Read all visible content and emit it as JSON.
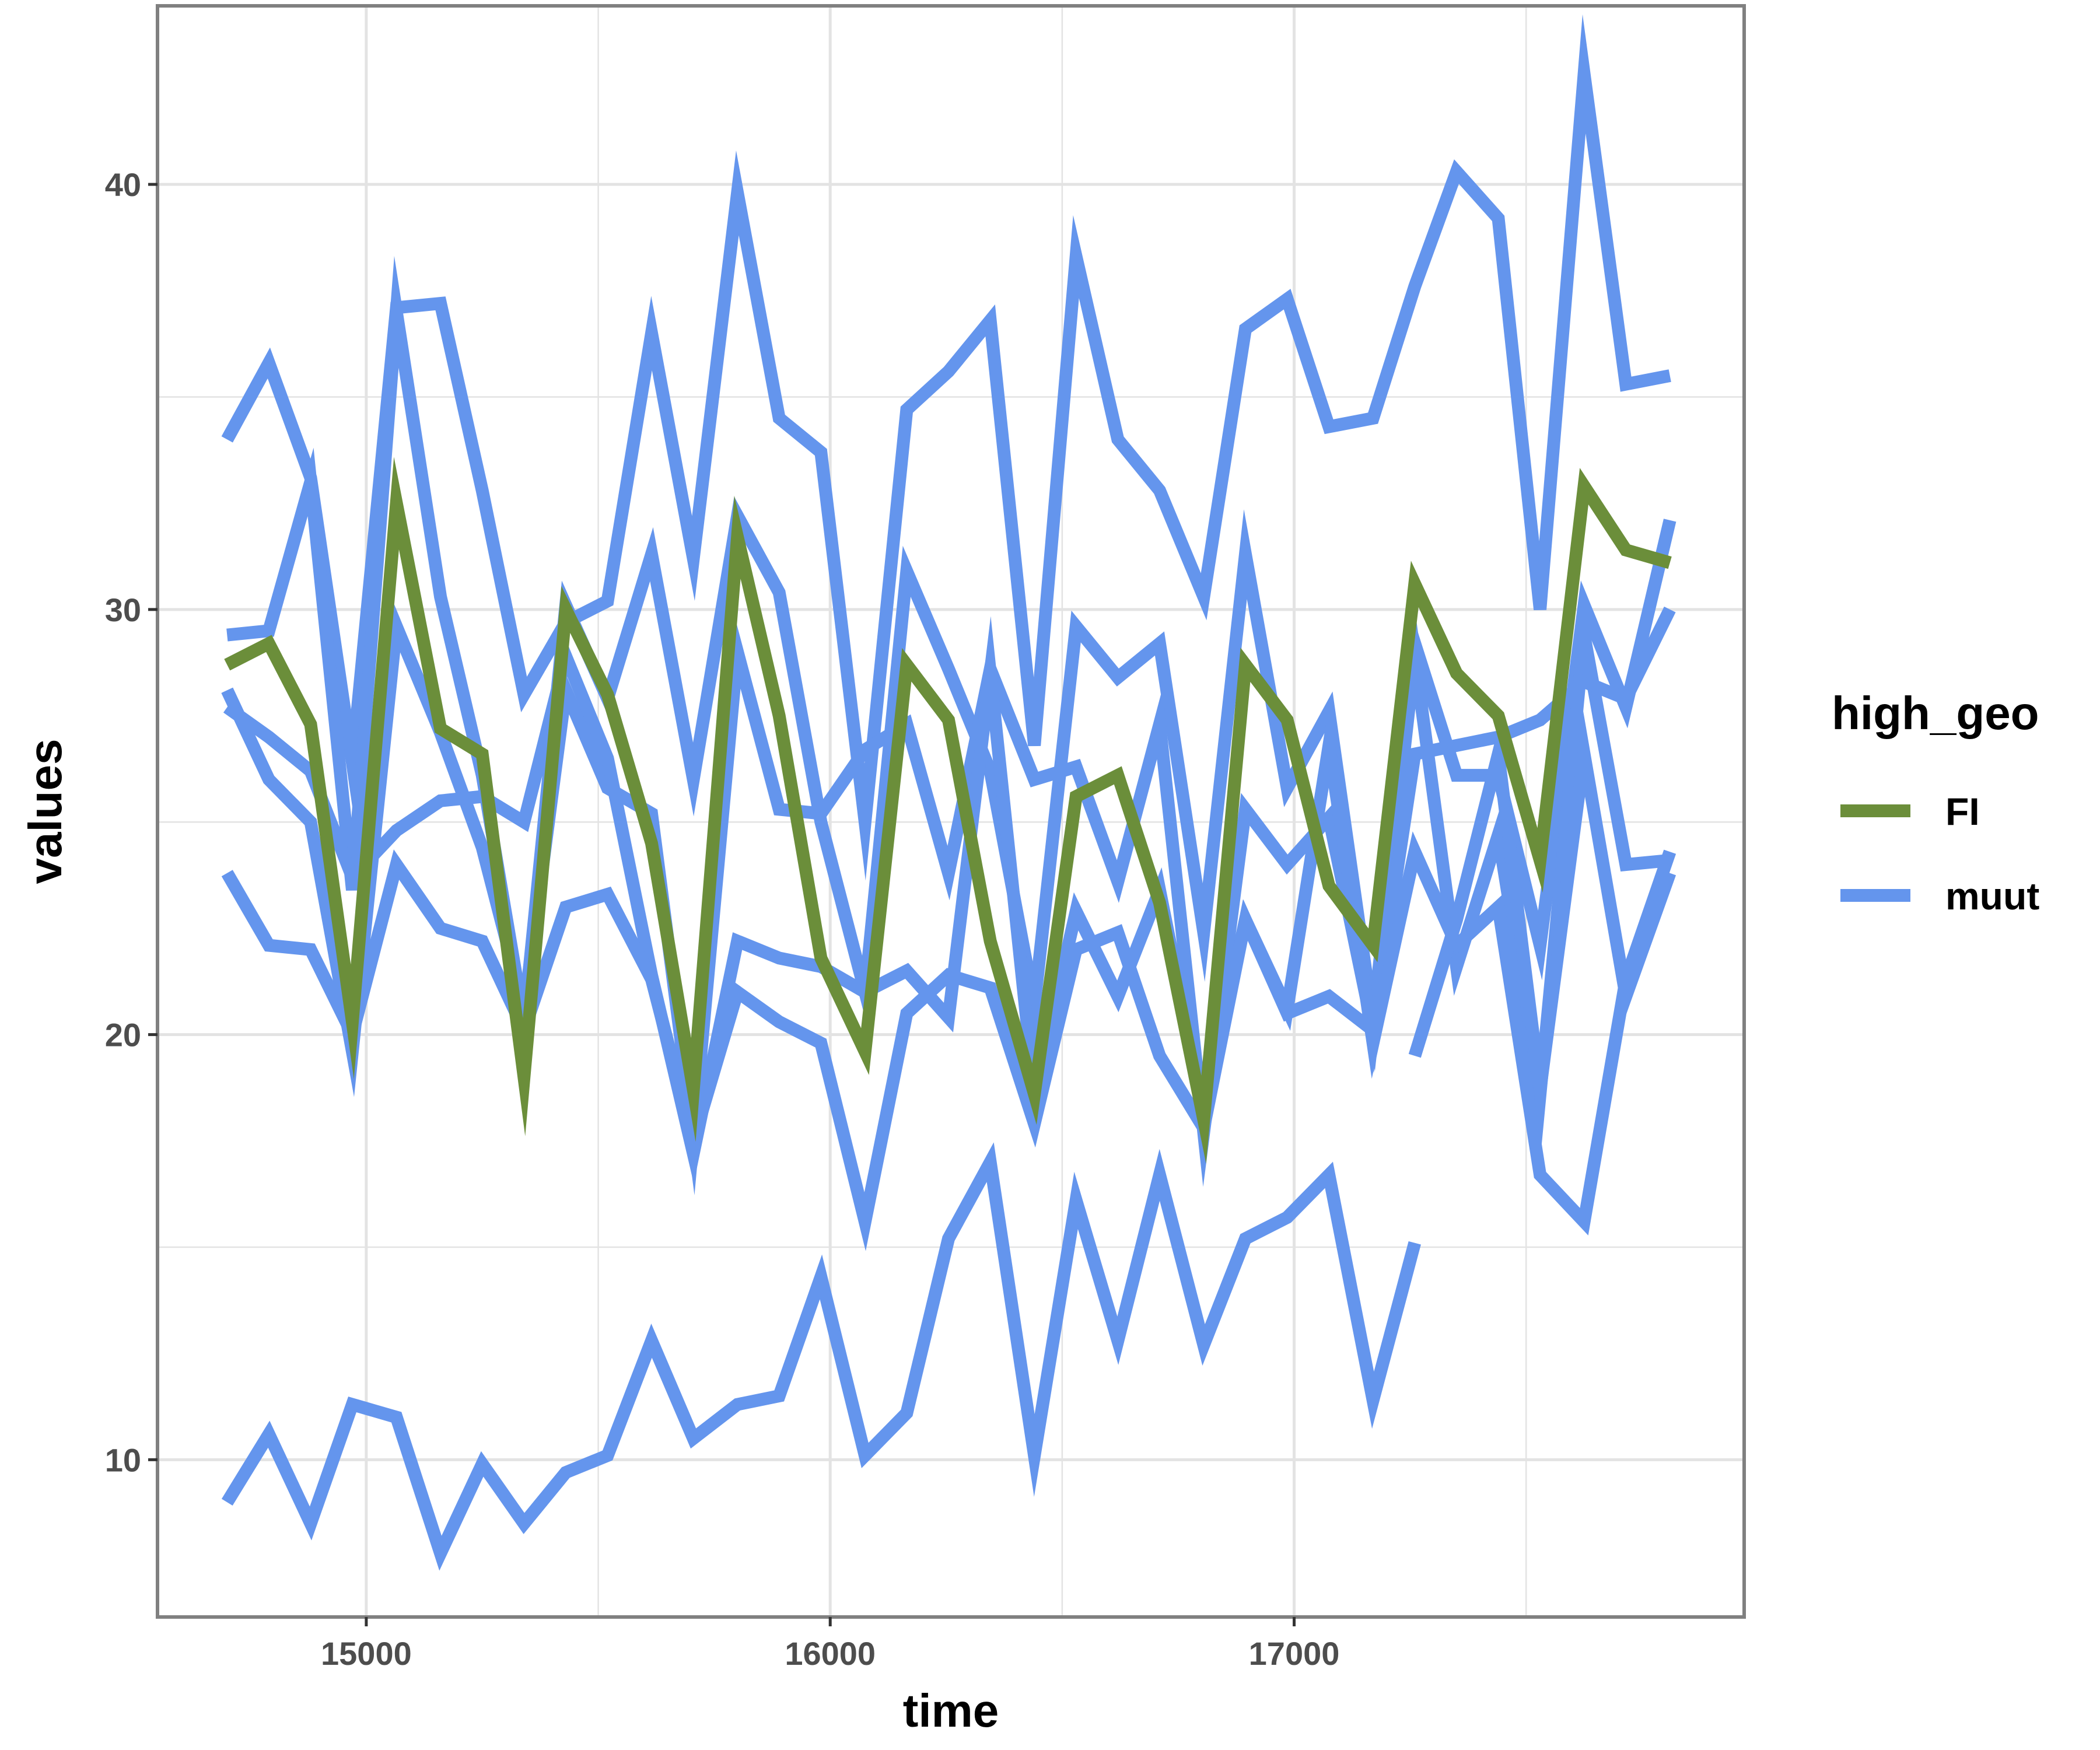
{
  "chart_data": {
    "type": "line",
    "xlabel": "time",
    "ylabel": "values",
    "xlim": [
      14550,
      17970
    ],
    "ylim": [
      6.3,
      44.2
    ],
    "x_ticks": [
      15000,
      16000,
      17000
    ],
    "y_ticks": [
      10,
      20,
      30,
      40
    ],
    "grid": true,
    "legend": {
      "title": "high_geo",
      "position": "right",
      "entries": [
        {
          "label": "FI",
          "color": "#6B8E3A"
        },
        {
          "label": "muut",
          "color": "#6495ED"
        }
      ]
    },
    "x": [
      14700,
      14790,
      14880,
      14970,
      15065,
      15160,
      15250,
      15340,
      15430,
      15520,
      15615,
      15705,
      15800,
      15890,
      15980,
      16075,
      16165,
      16255,
      16345,
      16440,
      16530,
      16620,
      16710,
      16805,
      16895,
      16985,
      17075,
      17170,
      17260,
      17350,
      17440,
      17530,
      17625,
      17715,
      17810
    ],
    "series": [
      {
        "group": "FI",
        "values": [
          28.7,
          29.2,
          27.3,
          20.3,
          32.5,
          27.2,
          26.6,
          19.0,
          30.0,
          28.0,
          24.5,
          18.7,
          31.7,
          27.5,
          21.8,
          19.6,
          28.7,
          27.4,
          22.2,
          18.6,
          25.6,
          26.1,
          23.1,
          18.0,
          28.7,
          27.4,
          23.5,
          22.1,
          30.6,
          28.5,
          27.5,
          24.1,
          32.9,
          31.4,
          31.1
        ]
      },
      {
        "group": "muut",
        "values": [
          34.0,
          35.8,
          33.1,
          26.4,
          37.1,
          37.2,
          32.8,
          28.0,
          29.7,
          30.2,
          36.5,
          31.2,
          39.8,
          34.5,
          33.7,
          25.0,
          34.7,
          35.6,
          36.8,
          26.8,
          38.3,
          34.0,
          32.8,
          30.3,
          36.6,
          37.3,
          34.3,
          34.5,
          37.6,
          40.3,
          39.2,
          30.0,
          42.6,
          35.3,
          35.5
        ]
      },
      {
        "group": "muut",
        "values": [
          29.4,
          29.5,
          33.0,
          23.4,
          37.0,
          30.3,
          26.1,
          20.3,
          30.1,
          27.9,
          31.3,
          26.0,
          32.2,
          30.4,
          25.0,
          21.0,
          30.9,
          28.6,
          26.2,
          20.7,
          29.6,
          28.4,
          29.2,
          22.4,
          31.3,
          25.8,
          27.6,
          20.3,
          29.2,
          26.1,
          26.1,
          22.1,
          30.1,
          27.7,
          32.1
        ]
      },
      {
        "group": "muut",
        "values": [
          28.1,
          26.0,
          25.0,
          19.6,
          29.6,
          27.1,
          24.4,
          20.6,
          28.1,
          25.8,
          25.2,
          17.6,
          29.0,
          25.3,
          25.2,
          26.7,
          27.3,
          23.8,
          28.6,
          26.0,
          26.3,
          23.6,
          27.3,
          17.7,
          25.3,
          24.0,
          25.1,
          20.1,
          28.9,
          21.6,
          24.7,
          18.6,
          29.4,
          24.0,
          24.1
        ]
      },
      {
        "group": "muut",
        "values": [
          27.7,
          27.0,
          26.2,
          23.7,
          24.8,
          25.5,
          25.6,
          25.0,
          28.9,
          26.5,
          21.4,
          17.2,
          22.2,
          21.8,
          21.6,
          21.0,
          21.5,
          20.4,
          28.5,
          18.6,
          22.9,
          20.9,
          23.4,
          18.2,
          22.7,
          20.5,
          20.9,
          20.1,
          26.6,
          26.8,
          27.0,
          27.4,
          28.3,
          27.9,
          30.0
        ]
      },
      {
        "group": "muut",
        "values": [
          23.8,
          22.1,
          22.0,
          20.0,
          24.0,
          22.5,
          22.2,
          20.1,
          23.0,
          23.3,
          21.3,
          17.5,
          21.0,
          20.3,
          19.8,
          15.6,
          20.5,
          21.4,
          21.1,
          17.9,
          22.0,
          22.4,
          19.5,
          17.8,
          22.7,
          20.6,
          26.8,
          19.8,
          24.3,
          22.1,
          23.0,
          16.7,
          15.6,
          21.3,
          24.3
        ]
      },
      {
        "group": "muut",
        "values": [
          9.0,
          10.6,
          8.5,
          11.3,
          11.0,
          7.8,
          9.9,
          8.5,
          9.7,
          10.1,
          12.8,
          10.5,
          11.3,
          11.5,
          14.3,
          10.1,
          11.1,
          15.2,
          17.0,
          10.1,
          16.1,
          12.8,
          16.7,
          12.7,
          15.2,
          15.7,
          16.7,
          11.4,
          15.1,
          null,
          null,
          null,
          null,
          null,
          null
        ]
      },
      {
        "group": "muut",
        "values": [
          null,
          null,
          null,
          null,
          null,
          null,
          null,
          null,
          null,
          null,
          null,
          null,
          null,
          null,
          null,
          null,
          null,
          null,
          null,
          null,
          null,
          null,
          null,
          null,
          null,
          null,
          null,
          null,
          19.5,
          22.7,
          26.6,
          18.7,
          26.6,
          20.9,
          23.8
        ]
      }
    ]
  }
}
